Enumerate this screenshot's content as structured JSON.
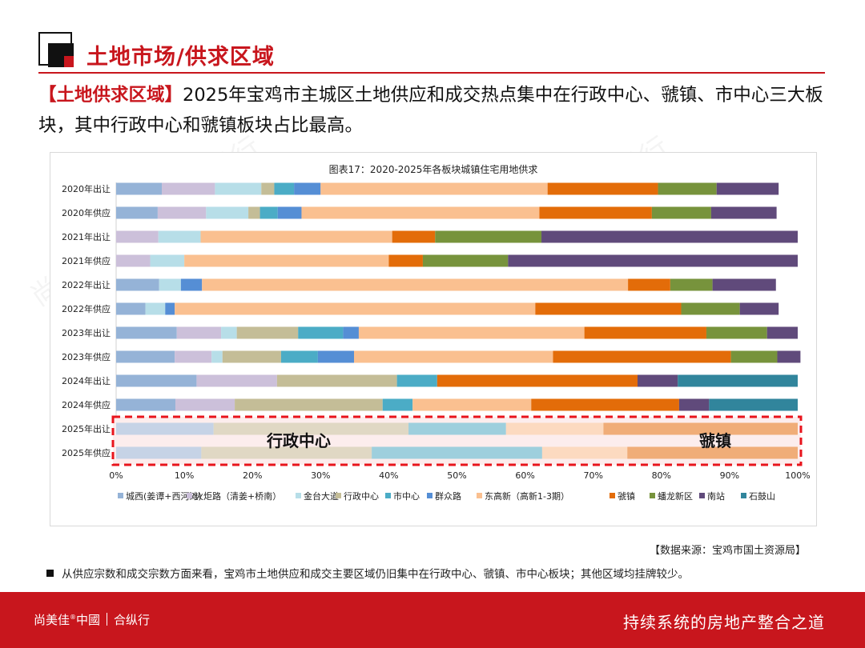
{
  "header": {
    "title": "土地市场/供求区域"
  },
  "lead": {
    "tag": "【土地供求区域】",
    "text": "2025年宝鸡市主城区土地供应和成交热点集中在行政中心、虢镇、市中心三大板块，其中行政中心和虢镇板块占比最高。"
  },
  "watermark": "尚美佳®中國｜合纵行",
  "chart_data": {
    "type": "bar",
    "orientation": "horizontal-stacked-percent",
    "title": "图表17：2020-2025年各板块城镇住宅用地供求",
    "categories": [
      "2020年出让",
      "2020年供应",
      "2021年出让",
      "2021年供应",
      "2022年出让",
      "2022年供应",
      "2023年出让",
      "2023年供应",
      "2024年出让",
      "2024年供应",
      "2025年出让",
      "2025年供应"
    ],
    "xlim": [
      0,
      100
    ],
    "x_ticks": [
      "0%",
      "10%",
      "20%",
      "30%",
      "40%",
      "50%",
      "60%",
      "70%",
      "80%",
      "90%",
      "100%"
    ],
    "legend_position": "bottom",
    "series": [
      {
        "name": "城西(姜谭+西河滩)",
        "color": "#95b3d7",
        "values": [
          6.7,
          6.1,
          0,
          0,
          6.3,
          4.3,
          8.9,
          8.6,
          11.8,
          8.7,
          14.3,
          12.5
        ]
      },
      {
        "name": "火炬路（清姜+桥南）",
        "color": "#ccc0da",
        "values": [
          7.8,
          7.1,
          6.2,
          5,
          0,
          0,
          6.5,
          5.4,
          11.8,
          8.7,
          0,
          0
        ]
      },
      {
        "name": "金台大道",
        "color": "#b7dee8",
        "values": [
          6.8,
          6.2,
          6.2,
          5,
          3.2,
          2.9,
          2.3,
          1.6,
          0,
          0,
          0,
          0
        ]
      },
      {
        "name": "行政中心",
        "color": "#c4bd97",
        "values": [
          1.9,
          1.7,
          0,
          0,
          0,
          0,
          9,
          8.6,
          17.6,
          21.7,
          28.6,
          25
        ]
      },
      {
        "name": "市中心",
        "color": "#4bacc6",
        "values": [
          2.9,
          2.6,
          0,
          0,
          0,
          0,
          6.6,
          5.4,
          5.9,
          4.4,
          14.3,
          25
        ]
      },
      {
        "name": "群众路",
        "color": "#558ed5",
        "values": [
          3.9,
          3.5,
          0,
          0,
          3.1,
          1.4,
          2.3,
          5.3,
          0,
          0,
          0,
          0
        ]
      },
      {
        "name": "东高新（高新1-3期）",
        "color": "#fac090",
        "values": [
          33.3,
          34.9,
          28.1,
          30,
          62.5,
          52.9,
          33.1,
          29.2,
          0,
          17.4,
          14.3,
          12.5
        ]
      },
      {
        "name": "虢镇",
        "color": "#e36c09",
        "values": [
          16.2,
          16.5,
          6.3,
          5,
          6.2,
          21.4,
          17.9,
          26.1,
          29.4,
          21.7,
          28.5,
          25
        ]
      },
      {
        "name": "蟠龙新区",
        "color": "#77933c",
        "values": [
          8.6,
          8.7,
          15.6,
          12.5,
          6.2,
          8.6,
          8.9,
          6.8,
          0,
          0,
          0,
          0
        ]
      },
      {
        "name": "南站",
        "color": "#604a7b",
        "values": [
          9.1,
          9.6,
          37.6,
          42.5,
          9.3,
          5.7,
          4.5,
          3.4,
          5.9,
          4.4,
          0,
          0
        ]
      },
      {
        "name": "石鼓山",
        "color": "#31859c",
        "values": [
          0,
          0,
          0,
          0,
          0,
          0,
          0,
          0,
          17.6,
          13,
          0,
          0
        ]
      }
    ],
    "highlight": {
      "rows": [
        "2025年出让",
        "2025年供应"
      ],
      "labels": [
        "行政中心",
        "虢镇"
      ]
    }
  },
  "source": "【数据来源：宝鸡市国土资源局】",
  "note": "从供应宗数和成交宗数方面来看，宝鸡市土地供应和成交主要区域仍旧集中在行政中心、虢镇、市中心板块；其他区域均挂牌较少。",
  "footer": {
    "logo_a": "尚美佳",
    "logo_reg": "®",
    "logo_b": "中國",
    "logo_c": "合纵行",
    "slogan": "持续系统的房地产整合之道"
  },
  "colors": {
    "brand_red": "#c8161d",
    "highlight_border": "#e8141c"
  }
}
